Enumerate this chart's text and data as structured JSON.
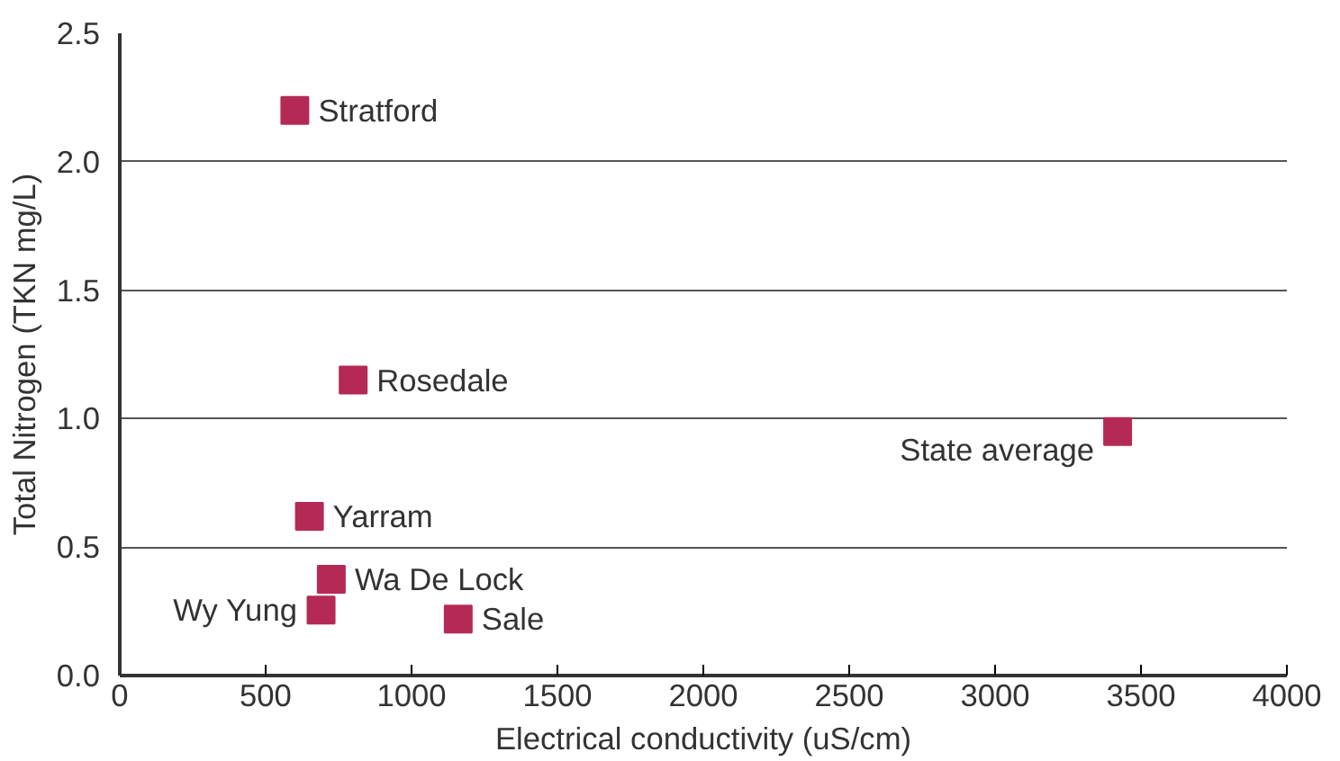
{
  "chart_data": {
    "type": "scatter",
    "xlabel": "Electrical conductivity (uS/cm)",
    "ylabel": "Total Nitrogen (TKN mg/L)",
    "x": [
      600,
      800,
      3420,
      650,
      725,
      690,
      1160
    ],
    "values": [
      2.2,
      1.15,
      0.95,
      0.62,
      0.375,
      0.255,
      0.22
    ],
    "color": "#b52a55",
    "marker": "square",
    "xlim": [
      0,
      4000
    ],
    "xticks": [
      0,
      500,
      1000,
      1500,
      2000,
      2500,
      3000,
      3500,
      4000
    ],
    "ylim": [
      0,
      2.5
    ],
    "yticks": [
      {
        "value": 0,
        "label": "0.0"
      },
      {
        "value": 0.5,
        "label": "0.5"
      },
      {
        "value": 1,
        "label": "1.0"
      },
      {
        "value": 1.5,
        "label": "1.5"
      },
      {
        "value": 2,
        "label": "2.0"
      },
      {
        "value": 2.5,
        "label": "2.5"
      }
    ],
    "grid": "y",
    "annotations": [
      {
        "text": "Stratford",
        "x": 600,
        "y": 2.2
      },
      {
        "text": "Rosedale",
        "x": 800,
        "y": 1.15
      },
      {
        "text": "State average",
        "x": 3420,
        "y": 0.95
      },
      {
        "text": "Yarram",
        "x": 650,
        "y": 0.62
      },
      {
        "text": "Wa De Lock",
        "x": 725,
        "y": 0.375
      },
      {
        "text": "Wy Yung",
        "x": 690,
        "y": 0.255
      },
      {
        "text": "Sale",
        "x": 1160,
        "y": 0.22
      }
    ]
  }
}
